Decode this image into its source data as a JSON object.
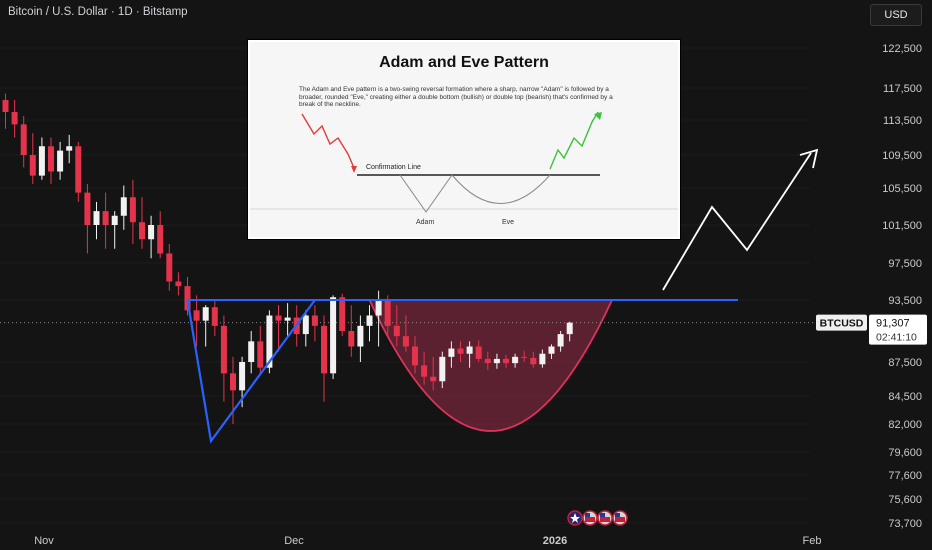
{
  "header": {
    "title": "Bitcoin / U.S. Dollar · 1D · Bitstamp"
  },
  "currency_button": "USD",
  "price_tag": {
    "symbol": "BTCUSD",
    "price": "91,307",
    "countdown": "02:41:10"
  },
  "colors": {
    "background": "#141414",
    "up": "#f2f2f2",
    "down": "#e5334b",
    "neckline": "#2962ff",
    "adam": "#2962ff",
    "eve_fill": "#8c2a44",
    "eve_stroke": "#e0325a",
    "projection": "#ffffff"
  },
  "inset": {
    "title": "Adam and Eve Pattern",
    "description": "The Adam and Eve pattern is a two-swing reversal formation where a sharp, narrow \"Adam\" is followed by a broader, rounded \"Eve,\" creating either a double bottom (bullish) or double top (bearish) that's confirmed by a break of the neckline.",
    "confirmation_label": "Confirmation Line",
    "adam_label": "Adam",
    "eve_label": "Eve"
  },
  "chart_data": {
    "type": "candlestick",
    "title": "Bitcoin / U.S. Dollar · 1D · Bitstamp",
    "y_axis": {
      "ticks": [
        122500,
        117500,
        113500,
        109500,
        105500,
        101500,
        97500,
        93500,
        87500,
        84500,
        82000,
        79600,
        77600,
        75600,
        73700
      ],
      "tick_labels": [
        "122,500",
        "117,500",
        "113,500",
        "109,500",
        "105,500",
        "101,500",
        "97,500",
        "93,500",
        "87,500",
        "84,500",
        "82,000",
        "79,600",
        "77,600",
        "75,600",
        "73,700"
      ],
      "range": [
        73000,
        125000
      ]
    },
    "x_axis": {
      "labels": [
        "Nov",
        "Dec",
        "2026",
        "Feb"
      ]
    },
    "neckline": 93500,
    "last_price": 91307,
    "candles": [
      [
        116000,
        116800,
        112500,
        114500
      ],
      [
        114500,
        116000,
        111500,
        113000
      ],
      [
        113000,
        114000,
        108000,
        109500
      ],
      [
        109500,
        112000,
        106000,
        107000
      ],
      [
        107000,
        111500,
        106500,
        110500
      ],
      [
        110500,
        111500,
        106000,
        107500
      ],
      [
        107500,
        111000,
        106500,
        110000
      ],
      [
        110000,
        111800,
        108500,
        110500
      ],
      [
        110500,
        111000,
        104000,
        105000
      ],
      [
        105000,
        106000,
        98500,
        101500
      ],
      [
        101500,
        104000,
        100000,
        103000
      ],
      [
        103000,
        105000,
        99000,
        101500
      ],
      [
        101500,
        103000,
        99000,
        102500
      ],
      [
        102500,
        105800,
        101000,
        104500
      ],
      [
        104500,
        106500,
        99500,
        101800
      ],
      [
        101800,
        104500,
        99000,
        100000
      ],
      [
        100000,
        102500,
        98000,
        101500
      ],
      [
        101500,
        103000,
        98000,
        98500
      ],
      [
        98500,
        99500,
        94500,
        95500
      ],
      [
        95500,
        96500,
        94000,
        95000
      ],
      [
        95000,
        96000,
        92000,
        92500
      ],
      [
        92500,
        94000,
        89000,
        91500
      ],
      [
        91500,
        93000,
        89000,
        92800
      ],
      [
        92800,
        93500,
        90000,
        91000
      ],
      [
        91000,
        92000,
        84000,
        86500
      ],
      [
        86500,
        88000,
        82000,
        85000
      ],
      [
        85000,
        88000,
        83500,
        87500
      ],
      [
        87500,
        90500,
        86500,
        89500
      ],
      [
        89500,
        91000,
        86500,
        87000
      ],
      [
        87000,
        92500,
        86500,
        92000
      ],
      [
        92000,
        93000,
        88500,
        91500
      ],
      [
        91500,
        93200,
        90000,
        91800
      ],
      [
        91800,
        93000,
        89000,
        90200
      ],
      [
        90200,
        92500,
        89000,
        92000
      ],
      [
        92000,
        93000,
        89500,
        91000
      ],
      [
        91000,
        92000,
        84000,
        86500
      ],
      [
        86500,
        94000,
        86000,
        93800
      ],
      [
        93800,
        94200,
        90000,
        90500
      ],
      [
        90500,
        93000,
        88000,
        89000
      ],
      [
        89000,
        92000,
        87500,
        91000
      ],
      [
        91000,
        93000,
        89500,
        92000
      ],
      [
        92000,
        94500,
        89000,
        93500
      ],
      [
        93500,
        94000,
        90000,
        91000
      ],
      [
        91000,
        93000,
        89000,
        90000
      ],
      [
        90000,
        92000,
        88500,
        89000
      ],
      [
        89000,
        90000,
        86500,
        87200
      ],
      [
        87200,
        88500,
        85500,
        86200
      ],
      [
        86200,
        88000,
        85000,
        85800
      ],
      [
        85800,
        88500,
        85200,
        88000
      ],
      [
        88000,
        89500,
        87000,
        88800
      ],
      [
        88800,
        89500,
        87500,
        88300
      ],
      [
        88300,
        89500,
        87000,
        89000
      ],
      [
        89000,
        89600,
        87500,
        87800
      ],
      [
        87800,
        88500,
        86800,
        87400
      ],
      [
        87400,
        88300,
        86900,
        87800
      ],
      [
        87800,
        88200,
        87000,
        87400
      ],
      [
        87400,
        88300,
        87000,
        88000
      ],
      [
        88000,
        88600,
        87500,
        87900
      ],
      [
        87900,
        88500,
        87000,
        87300
      ],
      [
        87300,
        88700,
        87000,
        88300
      ],
      [
        88300,
        89200,
        87800,
        89000
      ],
      [
        89000,
        90500,
        88500,
        90200
      ],
      [
        90200,
        91400,
        89500,
        91300
      ]
    ],
    "projection_points": [
      [
        95000
      ],
      [
        103000
      ],
      [
        99000
      ],
      [
        110500
      ]
    ]
  }
}
